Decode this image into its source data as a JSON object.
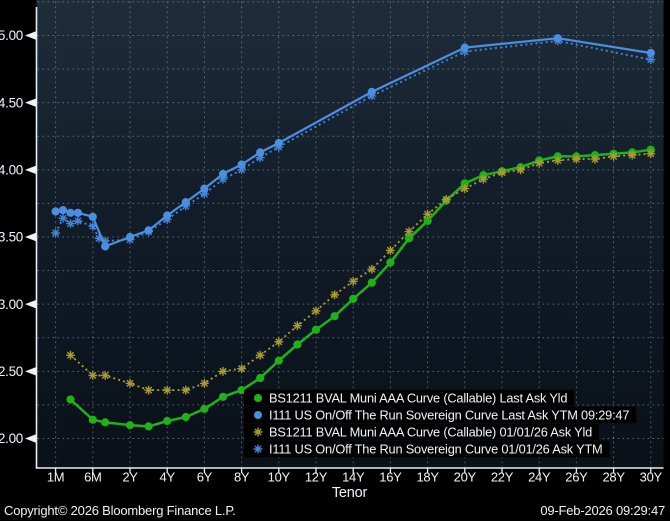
{
  "footer": {
    "copyright": "Copyright© 2026 Bloomberg Finance L.P.",
    "timestamp": "09-Feb-2026 09:29:47"
  },
  "palette": {
    "background_top": "#1f2c3a",
    "background_bottom": "#0a1118",
    "grid": "#aab1ba",
    "axis": "#e9eef3",
    "text": "#f1f4f7",
    "legend_bg": "#000000",
    "muni_green": "#1fb217",
    "sovereign_blue": "#4a8fe2",
    "muni_forward_olive": "#a89a2e",
    "sovereign_forward_blue": "#4384d6"
  },
  "chart_data": {
    "type": "line",
    "title": "",
    "xlabel": "Tenor",
    "ylabel": "",
    "x_axis_type": "tenor-ordinal",
    "x_tick_labels": [
      "1M",
      "6M",
      "2Y",
      "4Y",
      "6Y",
      "8Y",
      "10Y",
      "12Y",
      "14Y",
      "16Y",
      "18Y",
      "20Y",
      "22Y",
      "24Y",
      "26Y",
      "28Y",
      "30Y"
    ],
    "y_ticks": [
      {
        "label": "5.00",
        "value": 5.0
      },
      {
        "label": "4.50",
        "value": 4.5
      },
      {
        "label": "4.00",
        "value": 4.0
      },
      {
        "label": "3.50",
        "value": 3.5
      },
      {
        "label": "3.00",
        "value": 3.0
      },
      {
        "label": "2.50",
        "value": 2.5
      },
      {
        "label": "2.00",
        "value": 2.0
      }
    ],
    "y_grid_interval": 0.25,
    "ylim": [
      1.78,
      5.28
    ],
    "grid": "dotted",
    "legend_position": "bottom-right",
    "series": [
      {
        "id": "muni-last",
        "name": "BS1211 BVAL Muni AAA Curve (Callable) Last Ask Yld",
        "color": "#1fb217",
        "marker": "circle",
        "line": "solid",
        "points": [
          [
            "3M",
            2.29
          ],
          [
            "6M",
            2.14
          ],
          [
            "1Y",
            2.12
          ],
          [
            "2Y",
            2.1
          ],
          [
            "3Y",
            2.09
          ],
          [
            "4Y",
            2.13
          ],
          [
            "5Y",
            2.16
          ],
          [
            "6Y",
            2.22
          ],
          [
            "7Y",
            2.31
          ],
          [
            "8Y",
            2.36
          ],
          [
            "9Y",
            2.45
          ],
          [
            "10Y",
            2.58
          ],
          [
            "11Y",
            2.7
          ],
          [
            "12Y",
            2.81
          ],
          [
            "13Y",
            2.91
          ],
          [
            "14Y",
            3.04
          ],
          [
            "15Y",
            3.16
          ],
          [
            "16Y",
            3.31
          ],
          [
            "17Y",
            3.49
          ],
          [
            "18Y",
            3.62
          ],
          [
            "19Y",
            3.77
          ],
          [
            "20Y",
            3.9
          ],
          [
            "21Y",
            3.96
          ],
          [
            "22Y",
            3.99
          ],
          [
            "23Y",
            4.02
          ],
          [
            "24Y",
            4.07
          ],
          [
            "25Y",
            4.1
          ],
          [
            "26Y",
            4.1
          ],
          [
            "27Y",
            4.11
          ],
          [
            "28Y",
            4.12
          ],
          [
            "29Y",
            4.13
          ],
          [
            "30Y",
            4.15
          ]
        ]
      },
      {
        "id": "sovereign-last",
        "name": "I111 US On/Off The Run Sovereign Curve Last Ask YTM 09:29:47",
        "color": "#4a8fe2",
        "marker": "circle",
        "line": "solid",
        "points": [
          [
            "1M",
            3.69
          ],
          [
            "2M",
            3.7
          ],
          [
            "3M",
            3.68
          ],
          [
            "4M",
            3.68
          ],
          [
            "6M",
            3.65
          ],
          [
            "1Y",
            3.43
          ],
          [
            "2Y",
            3.5
          ],
          [
            "3Y",
            3.55
          ],
          [
            "4Y",
            3.66
          ],
          [
            "5Y",
            3.76
          ],
          [
            "6Y",
            3.86
          ],
          [
            "7Y",
            3.97
          ],
          [
            "8Y",
            4.04
          ],
          [
            "9Y",
            4.13
          ],
          [
            "10Y",
            4.2
          ],
          [
            "15Y",
            4.58
          ],
          [
            "20Y",
            4.91
          ],
          [
            "25Y",
            4.98
          ],
          [
            "30Y",
            4.87
          ]
        ]
      },
      {
        "id": "muni-forward",
        "name": "BS1211 BVAL Muni AAA Curve (Callable) 01/01/26 Ask Yld",
        "color": "#a89a2e",
        "marker": "star",
        "line": "dotted",
        "points": [
          [
            "3M",
            2.62
          ],
          [
            "6M",
            2.47
          ],
          [
            "1Y",
            2.47
          ],
          [
            "2Y",
            2.41
          ],
          [
            "3Y",
            2.36
          ],
          [
            "4Y",
            2.36
          ],
          [
            "5Y",
            2.36
          ],
          [
            "6Y",
            2.41
          ],
          [
            "7Y",
            2.5
          ],
          [
            "8Y",
            2.52
          ],
          [
            "9Y",
            2.62
          ],
          [
            "10Y",
            2.72
          ],
          [
            "11Y",
            2.84
          ],
          [
            "12Y",
            2.95
          ],
          [
            "13Y",
            3.07
          ],
          [
            "14Y",
            3.17
          ],
          [
            "15Y",
            3.26
          ],
          [
            "16Y",
            3.4
          ],
          [
            "17Y",
            3.54
          ],
          [
            "18Y",
            3.67
          ],
          [
            "19Y",
            3.78
          ],
          [
            "20Y",
            3.86
          ],
          [
            "21Y",
            3.93
          ],
          [
            "22Y",
            3.98
          ],
          [
            "23Y",
            4.0
          ],
          [
            "24Y",
            4.05
          ],
          [
            "25Y",
            4.07
          ],
          [
            "26Y",
            4.08
          ],
          [
            "27Y",
            4.08
          ],
          [
            "28Y",
            4.1
          ],
          [
            "29Y",
            4.11
          ],
          [
            "30Y",
            4.12
          ]
        ]
      },
      {
        "id": "sovereign-forward",
        "name": "I111 US On/Off The Run Sovereign Curve 01/01/26 Ask YTM",
        "color": "#4384d6",
        "marker": "star",
        "line": "dotted",
        "points": [
          [
            "1M",
            3.53
          ],
          [
            "2M",
            3.64
          ],
          [
            "3M",
            3.6
          ],
          [
            "4M",
            3.62
          ],
          [
            "6M",
            3.58
          ],
          [
            "9M",
            3.49
          ],
          [
            "1Y",
            3.47
          ],
          [
            "2Y",
            3.48
          ],
          [
            "3Y",
            3.54
          ],
          [
            "4Y",
            3.63
          ],
          [
            "5Y",
            3.73
          ],
          [
            "6Y",
            3.82
          ],
          [
            "7Y",
            3.93
          ],
          [
            "8Y",
            4.0
          ],
          [
            "9Y",
            4.09
          ],
          [
            "10Y",
            4.17
          ],
          [
            "15Y",
            4.55
          ],
          [
            "20Y",
            4.88
          ],
          [
            "25Y",
            4.96
          ],
          [
            "30Y",
            4.82
          ]
        ]
      }
    ]
  }
}
